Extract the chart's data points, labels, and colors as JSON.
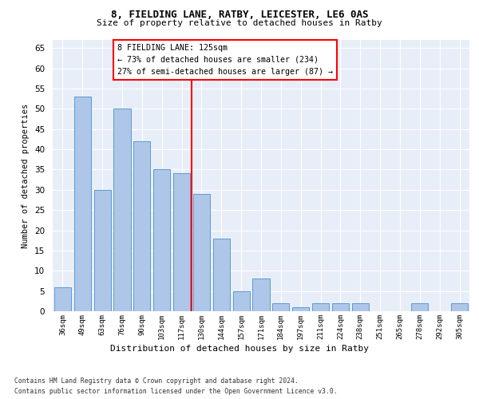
{
  "title1": "8, FIELDING LANE, RATBY, LEICESTER, LE6 0AS",
  "title2": "Size of property relative to detached houses in Ratby",
  "xlabel": "Distribution of detached houses by size in Ratby",
  "ylabel": "Number of detached properties",
  "categories": [
    "36sqm",
    "49sqm",
    "63sqm",
    "76sqm",
    "90sqm",
    "103sqm",
    "117sqm",
    "130sqm",
    "144sqm",
    "157sqm",
    "171sqm",
    "184sqm",
    "197sqm",
    "211sqm",
    "224sqm",
    "238sqm",
    "251sqm",
    "265sqm",
    "278sqm",
    "292sqm",
    "305sqm"
  ],
  "values": [
    6,
    53,
    30,
    50,
    42,
    35,
    34,
    29,
    18,
    5,
    8,
    2,
    1,
    2,
    2,
    2,
    0,
    0,
    2,
    0,
    2
  ],
  "bar_color": "#aec6e8",
  "bar_edge_color": "#5a9bd5",
  "background_color": "#e8eef7",
  "grid_color": "#ffffff",
  "vline_color": "red",
  "annotation_title": "8 FIELDING LANE: 125sqm",
  "annotation_line1": "← 73% of detached houses are smaller (234)",
  "annotation_line2": "27% of semi-detached houses are larger (87) →",
  "footer1": "Contains HM Land Registry data © Crown copyright and database right 2024.",
  "footer2": "Contains public sector information licensed under the Open Government Licence v3.0.",
  "ylim": [
    0,
    67
  ],
  "yticks": [
    0,
    5,
    10,
    15,
    20,
    25,
    30,
    35,
    40,
    45,
    50,
    55,
    60,
    65
  ]
}
